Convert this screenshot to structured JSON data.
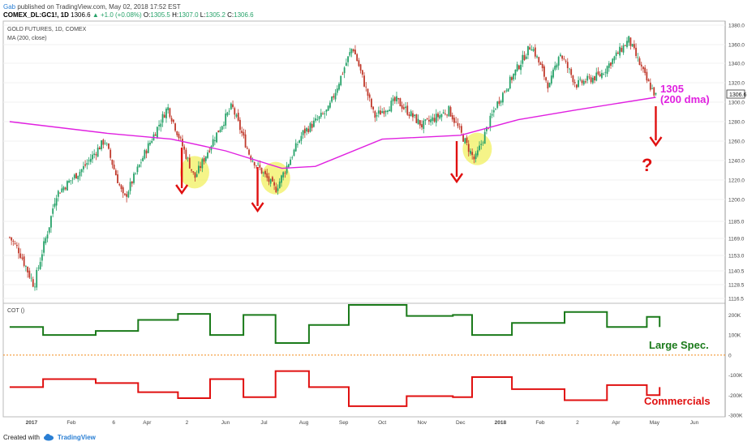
{
  "header": {
    "author": "Gab",
    "published_text": "published on TradingView.com, May 02, 2018 17:52 EST",
    "symbol_line": "COMEX_DL:GC1!, 1D",
    "o_label": "O:",
    "o_value": "1305.5",
    "h_label": "H:",
    "h_value": "1307.0",
    "l_label": "L:",
    "l_value": "1305.2",
    "c_label": "C:",
    "c_value": "1306.6",
    "last": "1306.6",
    "change": "▲ +1.0 (+0.08%)"
  },
  "price_pane": {
    "title": "GOLD FUTURES, 1D, COMEX",
    "indicator": "MA (200, close)",
    "current_price": "1306.6",
    "ma_note_line1": "1305",
    "ma_note_line2": "(200 dma)",
    "question_mark": "?"
  },
  "cot_pane": {
    "title": "COT ()",
    "large_spec_label": "Large Spec.",
    "commercials_label": "Commercials"
  },
  "footer": {
    "created_with": "Created with",
    "brand": "TradingView"
  },
  "colors": {
    "ma": "#e020e0",
    "large_spec": "#1a7a1a",
    "commercials": "#e01010",
    "arrow": "#e01010",
    "highlight": "#f2f060",
    "zero_line": "#f28a1a",
    "candle_up": "#26a269",
    "candle_down": "#c0392b"
  },
  "chart_data": [
    {
      "type": "line",
      "title": "GOLD FUTURES, 1D, COMEX",
      "x_ticks": [
        "2017",
        "Feb",
        "6",
        "Apr",
        "2",
        "Jun",
        "Jul",
        "Aug",
        "Sep",
        "Oct",
        "Nov",
        "Dec",
        "2018",
        "Feb",
        "2",
        "Apr",
        "May",
        "Jun"
      ],
      "y_ticks": [
        "1380.0",
        "1360.0",
        "1340.0",
        "1320.0",
        "1300.0",
        "1280.0",
        "1260.0",
        "1240.0",
        "1220.0",
        "1200.0",
        "1185.0",
        "1169.0",
        "1153.0",
        "1140.5",
        "1128.5",
        "1116.5"
      ],
      "ylim": [
        1116.5,
        1380.0
      ],
      "series": [
        {
          "name": "Gold close",
          "x": [
            "2016-12-15",
            "2016-12-22",
            "2017-01-03",
            "2017-01-20",
            "2017-02-10",
            "2017-02-27",
            "2017-03-14",
            "2017-03-31",
            "2017-04-17",
            "2017-05-08",
            "2017-05-22",
            "2017-06-06",
            "2017-06-20",
            "2017-07-10",
            "2017-07-31",
            "2017-08-20",
            "2017-09-08",
            "2017-09-25",
            "2017-10-12",
            "2017-11-01",
            "2017-11-22",
            "2017-12-12",
            "2017-12-28",
            "2018-01-25",
            "2018-02-08",
            "2018-02-16",
            "2018-03-01",
            "2018-03-20",
            "2018-04-11",
            "2018-04-25",
            "2018-05-02"
          ],
          "values": [
            1170,
            1158,
            1128,
            1205,
            1232,
            1261,
            1200,
            1250,
            1295,
            1222,
            1260,
            1296,
            1245,
            1210,
            1268,
            1292,
            1358,
            1285,
            1302,
            1276,
            1292,
            1240,
            1295,
            1360,
            1315,
            1352,
            1318,
            1328,
            1365,
            1322,
            1306.6
          ]
        },
        {
          "name": "MA (200, close)",
          "x": [
            "2016-12-15",
            "2017-03-01",
            "2017-04-20",
            "2017-06-01",
            "2017-07-15",
            "2017-08-10",
            "2017-10-01",
            "2017-12-01",
            "2018-01-15",
            "2018-03-01",
            "2018-05-02"
          ],
          "values": [
            1280,
            1268,
            1262,
            1250,
            1232,
            1234,
            1262,
            1266,
            1282,
            1292,
            1305
          ]
        }
      ]
    },
    {
      "type": "line",
      "title": "COT ()",
      "y_ticks": [
        "200K",
        "100K",
        "0",
        "-100K",
        "-200K",
        "-300K"
      ],
      "ylim": [
        -300000,
        250000
      ],
      "series": [
        {
          "name": "Large Spec.",
          "x": [
            "2016-12-15",
            "2017-01-10",
            "2017-02-20",
            "2017-03-25",
            "2017-04-25",
            "2017-05-20",
            "2017-06-15",
            "2017-07-10",
            "2017-08-05",
            "2017-09-05",
            "2017-10-20",
            "2017-11-25",
            "2017-12-10",
            "2018-01-10",
            "2018-02-20",
            "2018-03-25",
            "2018-04-25",
            "2018-05-05"
          ],
          "values": [
            140000,
            100000,
            120000,
            175000,
            205000,
            100000,
            200000,
            60000,
            150000,
            250000,
            195000,
            200000,
            100000,
            160000,
            215000,
            140000,
            190000,
            140000
          ]
        },
        {
          "name": "Commercials",
          "x": [
            "2016-12-15",
            "2017-01-10",
            "2017-02-20",
            "2017-03-25",
            "2017-04-25",
            "2017-05-20",
            "2017-06-15",
            "2017-07-10",
            "2017-08-05",
            "2017-09-05",
            "2017-10-20",
            "2017-11-25",
            "2017-12-10",
            "2018-01-10",
            "2018-02-20",
            "2018-03-25",
            "2018-04-25",
            "2018-05-05"
          ],
          "values": [
            -160000,
            -120000,
            -140000,
            -185000,
            -215000,
            -120000,
            -210000,
            -80000,
            -160000,
            -255000,
            -205000,
            -210000,
            -110000,
            -170000,
            -225000,
            -150000,
            -200000,
            -160000
          ]
        }
      ]
    }
  ]
}
